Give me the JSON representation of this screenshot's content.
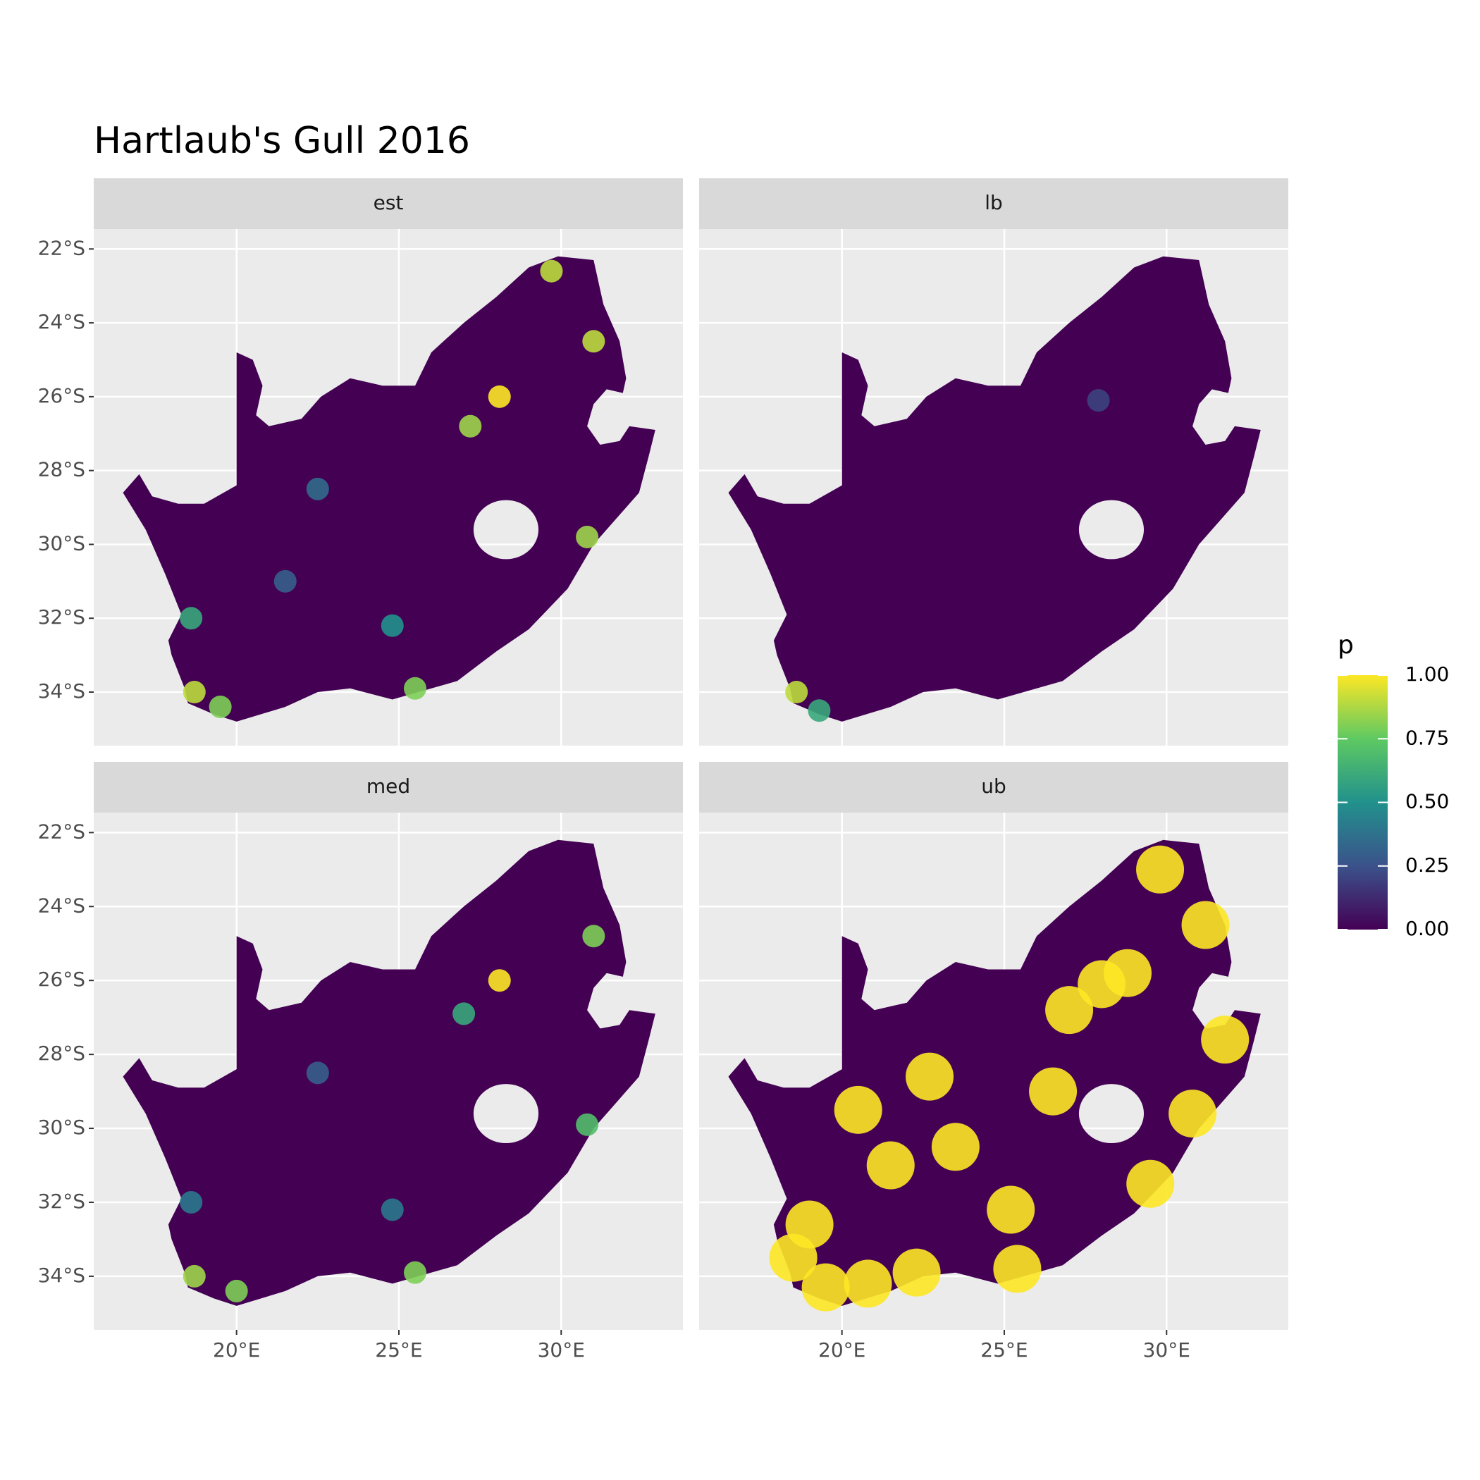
{
  "chart_data": {
    "type": "map",
    "title": "Hartlaub's Gull 2016",
    "xlim": [
      15.6,
      33.75
    ],
    "ylim": [
      -35.45,
      -21.46
    ],
    "xticks": [
      {
        "value": 20,
        "label": "20°E"
      },
      {
        "value": 25,
        "label": "25°E"
      },
      {
        "value": 30,
        "label": "30°E"
      }
    ],
    "yticks": [
      {
        "value": -22,
        "label": "22°S"
      },
      {
        "value": -24,
        "label": "24°S"
      },
      {
        "value": -26,
        "label": "26°S"
      },
      {
        "value": -28,
        "label": "28°S"
      },
      {
        "value": -30,
        "label": "30°S"
      },
      {
        "value": -32,
        "label": "32°S"
      },
      {
        "value": -34,
        "label": "34°S"
      }
    ],
    "grid": true,
    "legend": {
      "title": "p",
      "colors": [
        "#440154",
        "#3b528b",
        "#21918c",
        "#5ec962",
        "#fde725"
      ],
      "ticks": [
        {
          "value": 0,
          "label": "0.00"
        },
        {
          "value": 0.25,
          "label": "0.25"
        },
        {
          "value": 0.5,
          "label": "0.50"
        },
        {
          "value": 0.75,
          "label": "0.75"
        },
        {
          "value": 1,
          "label": "1.00"
        }
      ]
    },
    "panels": [
      {
        "name": "est",
        "hotspots": [
          {
            "lon": 28.1,
            "lat": -26.0,
            "p": 1
          },
          {
            "lon": 27.2,
            "lat": -26.8,
            "p": 0.85
          },
          {
            "lon": 18.7,
            "lat": -34.0,
            "p": 0.9
          },
          {
            "lon": 19.5,
            "lat": -34.4,
            "p": 0.8
          },
          {
            "lon": 30.8,
            "lat": -29.8,
            "p": 0.85
          },
          {
            "lon": 31.0,
            "lat": -24.5,
            "p": 0.9
          },
          {
            "lon": 25.5,
            "lat": -33.9,
            "p": 0.8
          },
          {
            "lon": 24.8,
            "lat": -32.2,
            "p": 0.5
          },
          {
            "lon": 18.6,
            "lat": -32.0,
            "p": 0.6
          },
          {
            "lon": 29.7,
            "lat": -22.6,
            "p": 0.9
          },
          {
            "lon": 22.5,
            "lat": -28.5,
            "p": 0.35
          },
          {
            "lon": 21.5,
            "lat": -31.0,
            "p": 0.3
          }
        ]
      },
      {
        "name": "lb",
        "hotspots": [
          {
            "lon": 18.6,
            "lat": -34.0,
            "p": 0.9
          },
          {
            "lon": 19.3,
            "lat": -34.5,
            "p": 0.6
          },
          {
            "lon": 27.9,
            "lat": -26.1,
            "p": 0.2
          }
        ]
      },
      {
        "name": "med",
        "hotspots": [
          {
            "lon": 28.1,
            "lat": -26.0,
            "p": 1
          },
          {
            "lon": 27.0,
            "lat": -26.9,
            "p": 0.6
          },
          {
            "lon": 18.7,
            "lat": -34.0,
            "p": 0.85
          },
          {
            "lon": 20.0,
            "lat": -34.4,
            "p": 0.8
          },
          {
            "lon": 30.8,
            "lat": -29.9,
            "p": 0.7
          },
          {
            "lon": 31.0,
            "lat": -24.8,
            "p": 0.8
          },
          {
            "lon": 25.5,
            "lat": -33.9,
            "p": 0.8
          },
          {
            "lon": 24.8,
            "lat": -32.2,
            "p": 0.4
          },
          {
            "lon": 18.6,
            "lat": -32.0,
            "p": 0.4
          },
          {
            "lon": 22.5,
            "lat": -28.5,
            "p": 0.3
          }
        ]
      },
      {
        "name": "ub",
        "hotspots": [
          {
            "lon": 28.0,
            "lat": -26.1,
            "p": 1
          },
          {
            "lon": 27.0,
            "lat": -26.8,
            "p": 1
          },
          {
            "lon": 28.8,
            "lat": -25.8,
            "p": 1
          },
          {
            "lon": 18.5,
            "lat": -33.5,
            "p": 1
          },
          {
            "lon": 19.0,
            "lat": -32.6,
            "p": 1
          },
          {
            "lon": 19.5,
            "lat": -34.3,
            "p": 1
          },
          {
            "lon": 20.8,
            "lat": -34.2,
            "p": 1
          },
          {
            "lon": 22.3,
            "lat": -33.9,
            "p": 1
          },
          {
            "lon": 25.4,
            "lat": -33.8,
            "p": 1
          },
          {
            "lon": 25.2,
            "lat": -32.2,
            "p": 1
          },
          {
            "lon": 30.8,
            "lat": -29.6,
            "p": 1
          },
          {
            "lon": 31.2,
            "lat": -24.5,
            "p": 1
          },
          {
            "lon": 31.8,
            "lat": -27.6,
            "p": 1
          },
          {
            "lon": 29.8,
            "lat": -23.0,
            "p": 1
          },
          {
            "lon": 22.7,
            "lat": -28.6,
            "p": 1
          },
          {
            "lon": 21.5,
            "lat": -31.0,
            "p": 1
          },
          {
            "lon": 23.5,
            "lat": -30.5,
            "p": 1
          },
          {
            "lon": 26.5,
            "lat": -29.0,
            "p": 1
          },
          {
            "lon": 29.5,
            "lat": -31.5,
            "p": 1
          },
          {
            "lon": 20.5,
            "lat": -29.5,
            "p": 1
          }
        ]
      }
    ]
  }
}
